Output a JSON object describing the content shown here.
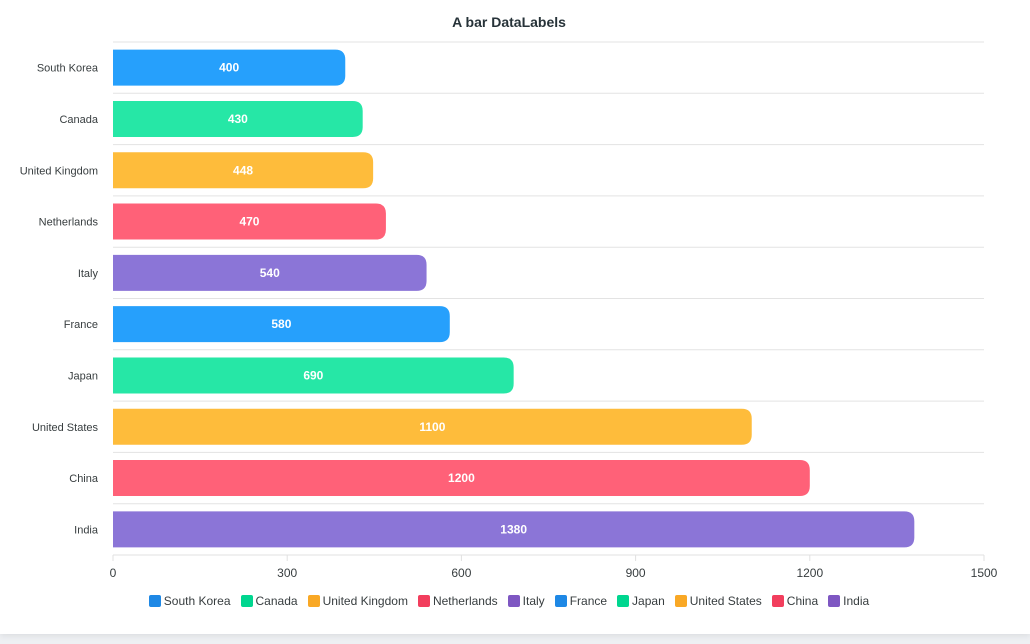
{
  "chart_data": {
    "type": "bar",
    "orientation": "horizontal",
    "title": "A bar DataLabels",
    "categories": [
      "South Korea",
      "Canada",
      "United Kingdom",
      "Netherlands",
      "Italy",
      "France",
      "Japan",
      "United States",
      "China",
      "India"
    ],
    "values": [
      400,
      430,
      448,
      470,
      540,
      580,
      690,
      1100,
      1200,
      1380
    ],
    "colors": [
      "#26a0fc",
      "#26e7a6",
      "#febc3b",
      "#ff6178",
      "#8b75d7",
      "#26a0fc",
      "#26e7a6",
      "#febc3b",
      "#ff6178",
      "#8b75d7"
    ],
    "legend_colors": [
      "#1e88e5",
      "#00d68f",
      "#f9a825",
      "#f23e5d",
      "#7e57c2",
      "#1e88e5",
      "#00d68f",
      "#f9a825",
      "#f23e5d",
      "#7e57c2"
    ],
    "xlim": [
      0,
      1500
    ],
    "xticks": [
      0,
      300,
      600,
      900,
      1200,
      1500
    ],
    "xlabel": "",
    "ylabel": "",
    "grid": true,
    "legend_position": "bottom",
    "data_labels": true
  }
}
